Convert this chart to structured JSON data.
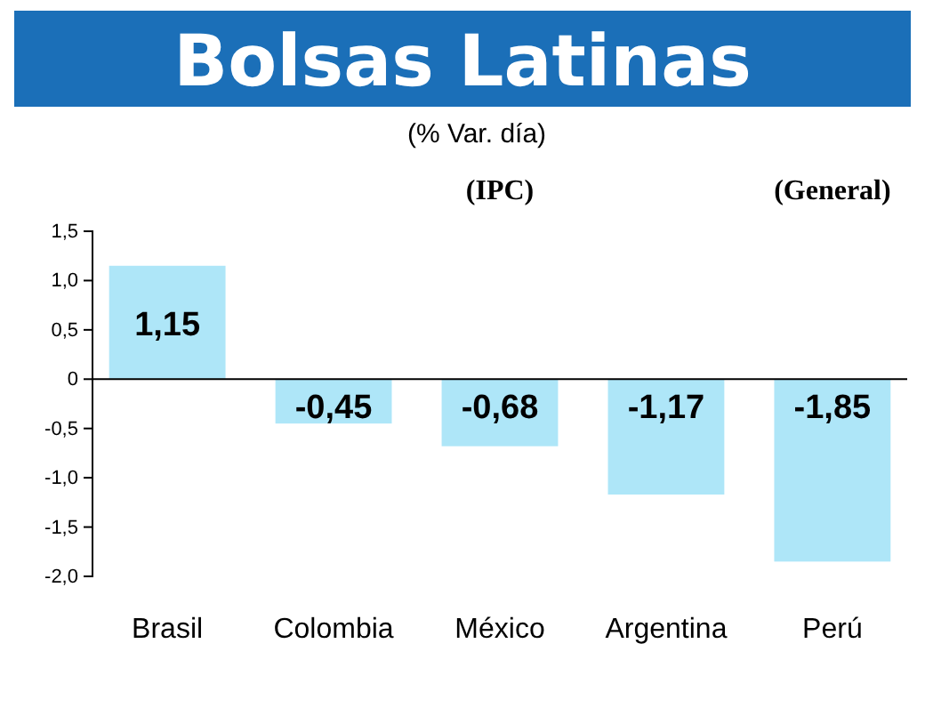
{
  "chart_data": {
    "type": "bar",
    "title": "Bolsas Latinas",
    "subtitle": "(% Var. día)",
    "categories": [
      "Brasil",
      "Colombia",
      "México",
      "Argentina",
      "Perú"
    ],
    "values": [
      1.15,
      -0.45,
      -0.68,
      -1.17,
      -1.85
    ],
    "value_labels": [
      "1,15",
      "-0,45",
      "-0,68",
      "-1,17",
      "-1,85"
    ],
    "color": "#aee6f8",
    "ylim": [
      -2,
      1.5
    ],
    "yticks": [
      {
        "value": -2,
        "label": "-2,0"
      },
      {
        "value": -1.5,
        "label": "-1,5"
      },
      {
        "value": -1,
        "label": "-1,0"
      },
      {
        "value": -0.5,
        "label": "-0,5"
      },
      0,
      {
        "value": 0.5,
        "label": "0,5"
      },
      {
        "value": 1,
        "label": "1,0"
      },
      {
        "value": 1.5,
        "label": "1,5"
      }
    ],
    "annotations": [
      "(IPC)",
      "(General)"
    ]
  }
}
